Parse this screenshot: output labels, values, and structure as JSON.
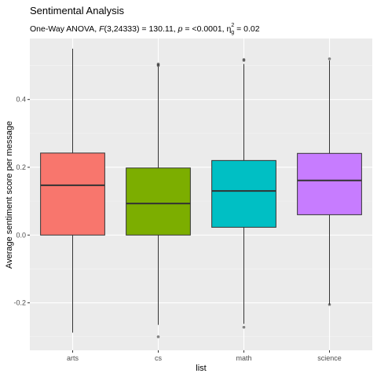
{
  "chart_data": {
    "type": "box",
    "title": "Sentimental Analysis",
    "subtitle": {
      "prefix": "One-Way ANOVA, ",
      "stat_name": "F",
      "stat_args": "(3,24333) = 130.11, ",
      "p_name": "p",
      "p_value": " = <0.0001, ",
      "eta_symbol": "η",
      "eta_sup": "2",
      "eta_sub": "g",
      "eta_value": " = 0.02"
    },
    "xlabel": "list",
    "ylabel": "Average sentiment score per message",
    "categories": [
      "arts",
      "cs",
      "math",
      "science"
    ],
    "colors": [
      "#F8766D",
      "#7CAE00",
      "#00BFC4",
      "#C77CFF"
    ],
    "ylim": [
      -0.34,
      0.58
    ],
    "yticks": [
      -0.2,
      0.0,
      0.2,
      0.4
    ],
    "ytick_labels": [
      "-0.2",
      "0.0",
      "0.2",
      "0.4"
    ],
    "grid": true,
    "boxes": [
      {
        "category": "arts",
        "whisker_low": -0.288,
        "q1": 0.0,
        "median": 0.147,
        "q3": 0.242,
        "whisker_high": 0.55,
        "outliers": []
      },
      {
        "category": "cs",
        "whisker_low": -0.265,
        "q1": 0.0,
        "median": 0.093,
        "q3": 0.198,
        "whisker_high": 0.497,
        "outliers": [
          -0.3,
          0.5,
          0.502,
          0.505
        ]
      },
      {
        "category": "math",
        "whisker_low": -0.262,
        "q1": 0.023,
        "median": 0.13,
        "q3": 0.22,
        "whisker_high": 0.505,
        "outliers": [
          -0.272,
          0.515,
          0.518
        ]
      },
      {
        "category": "science",
        "whisker_low": -0.205,
        "q1": 0.06,
        "median": 0.161,
        "q3": 0.241,
        "whisker_high": 0.515,
        "outliers": [
          -0.205,
          0.52
        ]
      }
    ]
  }
}
